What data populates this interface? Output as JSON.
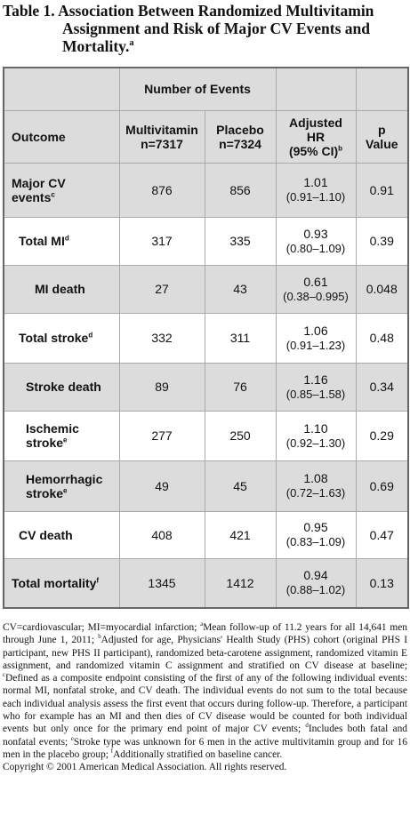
{
  "title": {
    "text": "Table 1. Association Between Randomized Multivitamin Assignment and Risk of Major CV Events and Mortality.",
    "sup": "a"
  },
  "table": {
    "group_header": "Number of Events",
    "columns": {
      "outcome": "Outcome",
      "multivitamin": [
        "Multivitamin",
        "n=7317"
      ],
      "placebo": [
        "Placebo",
        "n=7324"
      ],
      "hr": {
        "lines": [
          "Adjusted",
          "HR",
          "(95% CI)"
        ],
        "sup": "b"
      },
      "p": [
        "p",
        "Value"
      ]
    },
    "rows": [
      {
        "outcome": [
          "Major CV",
          "events"
        ],
        "sup": "c",
        "multivitamin": 876,
        "placebo": 856,
        "hr": "1.01",
        "ci": "(0.91–1.10)",
        "p": 0.91
      },
      {
        "outcome": [
          "Total MI"
        ],
        "sup": "d",
        "multivitamin": 317,
        "placebo": 335,
        "hr": "0.93",
        "ci": "(0.80–1.09)",
        "p": 0.39
      },
      {
        "outcome": [
          "MI death"
        ],
        "multivitamin": 27,
        "placebo": 43,
        "hr": "0.61",
        "ci": "(0.38–0.995)",
        "p": 0.048
      },
      {
        "outcome": [
          "Total stroke"
        ],
        "sup": "d",
        "multivitamin": 332,
        "placebo": 311,
        "hr": "1.06",
        "ci": "(0.91–1.23)",
        "p": 0.48
      },
      {
        "outcome": [
          "Stroke death"
        ],
        "multivitamin": 89,
        "placebo": 76,
        "hr": "1.16",
        "ci": "(0.85–1.58)",
        "p": 0.34
      },
      {
        "outcome": [
          "Ischemic",
          "stroke"
        ],
        "sup": "e",
        "multivitamin": 277,
        "placebo": 250,
        "hr": "1.10",
        "ci": "(0.92–1.30)",
        "p": 0.29
      },
      {
        "outcome": [
          "Hemorrhagic",
          "stroke"
        ],
        "sup": "e",
        "multivitamin": 49,
        "placebo": 45,
        "hr": "1.08",
        "ci": "(0.72–1.63)",
        "p": 0.69
      },
      {
        "outcome": [
          "CV death"
        ],
        "multivitamin": 408,
        "placebo": 421,
        "hr": "0.95",
        "ci": "(0.83–1.09)",
        "p": 0.47
      },
      {
        "outcome": [
          "Total mortality"
        ],
        "sup": "f",
        "multivitamin": 1345,
        "placebo": 1412,
        "hr": "0.94",
        "ci": "(0.88–1.02)",
        "p": 0.13
      }
    ]
  },
  "footnotes": {
    "lead": "CV=cardiovascular; MI=myocardial infarction; ",
    "notes": [
      {
        "mark": "a",
        "text": "Mean follow-up of 11.2 years for all 14,641 men through June 1, 2011; "
      },
      {
        "mark": "b",
        "text": "Adjusted for age, Physicians' Health Study (PHS) cohort (original PHS I participant, new PHS II participant), randomized beta-carotene assignment, randomized vitamin E assignment, and randomized vitamin C assignment and stratified on CV disease at baseline; "
      },
      {
        "mark": "c",
        "text": "Defined as a composite endpoint consisting of the first of any of the following individual events: normal MI, nonfatal stroke, and CV death. The individual events do not sum to the total because each individual analysis assess the first event that occurs during follow-up. Therefore, a participant who for example has an MI and then dies of CV disease would be counted for both individual events but only once for the primary end point of major CV events; "
      },
      {
        "mark": "d",
        "text": "Includes both fatal and nonfatal events; "
      },
      {
        "mark": "e",
        "text": "Stroke type was unknown for 6 men in the active multivitamin group and for 16 men in the placebo group; "
      },
      {
        "mark": "f",
        "text": "Additionally stratified on baseline cancer."
      }
    ],
    "copyright": "Copyright © 2001 American Medical Association. All rights reserved."
  }
}
